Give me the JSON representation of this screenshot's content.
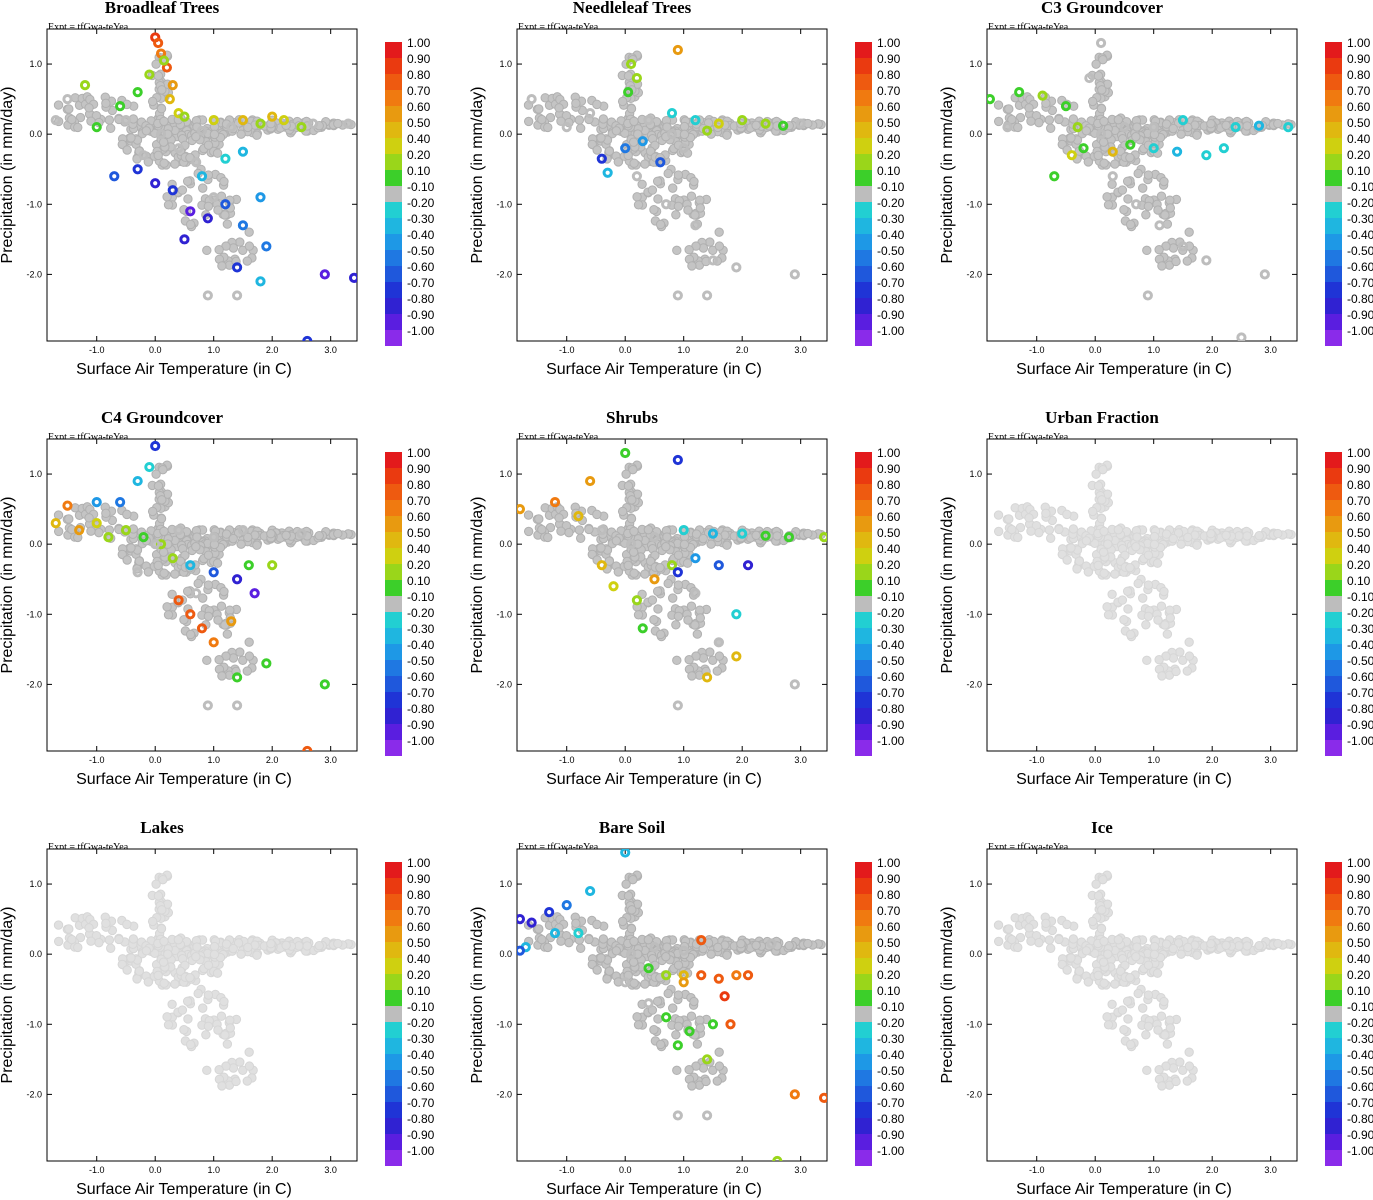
{
  "figure": {
    "expt_label": "Expt = tfGwa-teYea",
    "xlabel": "Surface Air Temperature (in C)",
    "ylabel": "Precipitation (in mm/day)",
    "x_ticks": [
      "-1.0",
      "0.0",
      "1.0",
      "2.0",
      "3.0"
    ],
    "y_ticks": [
      "1.0",
      "0.0",
      "-1.0",
      "-2.0"
    ],
    "colorbar_labels": [
      "1.00",
      "0.90",
      "0.80",
      "0.70",
      "0.60",
      "0.50",
      "0.40",
      "0.20",
      "0.10",
      "-0.10",
      "-0.20",
      "-0.30",
      "-0.40",
      "-0.50",
      "-0.60",
      "-0.70",
      "-0.80",
      "-0.90",
      "-1.00"
    ],
    "colorbar_colors": [
      "#e31a1c",
      "#ea3a10",
      "#ee5a10",
      "#f07a10",
      "#e89a10",
      "#e0b810",
      "#cfd010",
      "#9ad61a",
      "#3ccf2a",
      "#bdbdbd",
      "#22cfd2",
      "#1fb6e0",
      "#1e98e6",
      "#1f78e2",
      "#1f58dc",
      "#1f34d6",
      "#3022d2",
      "#5a1ee0",
      "#8a2bea"
    ]
  },
  "chart_data": [
    {
      "type": "scatter",
      "title": "Broadleaf Trees",
      "xlabel": "Surface Air Temperature (in C)",
      "ylabel": "Precipitation (in mm/day)",
      "xlim": [
        -1.85,
        3.45
      ],
      "ylim": [
        -2.95,
        1.5
      ],
      "color_scale": [
        -1.0,
        1.0
      ],
      "points": [
        [
          0.0,
          1.38,
          0.9
        ],
        [
          0.05,
          1.3,
          0.8
        ],
        [
          0.1,
          1.15,
          0.7
        ],
        [
          0.2,
          0.95,
          0.75
        ],
        [
          0.3,
          0.7,
          0.6
        ],
        [
          0.25,
          0.5,
          0.5
        ],
        [
          0.4,
          0.3,
          0.4
        ],
        [
          0.15,
          1.05,
          0.3
        ],
        [
          -0.1,
          0.85,
          0.2
        ],
        [
          -0.3,
          0.6,
          0.15
        ],
        [
          0.5,
          0.25,
          0.2
        ],
        [
          1.0,
          0.2,
          0.4
        ],
        [
          1.5,
          0.2,
          0.5
        ],
        [
          2.0,
          0.25,
          0.5
        ],
        [
          2.2,
          0.2,
          0.4
        ],
        [
          1.8,
          0.15,
          0.3
        ],
        [
          2.5,
          0.1,
          0.2
        ],
        [
          -1.2,
          0.7,
          0.2
        ],
        [
          -0.6,
          0.4,
          0.15
        ],
        [
          -1.0,
          0.1,
          0.15
        ],
        [
          -0.7,
          -0.6,
          -0.6
        ],
        [
          -0.3,
          -0.5,
          -0.7
        ],
        [
          0.0,
          -0.7,
          -0.8
        ],
        [
          0.3,
          -0.8,
          -0.7
        ],
        [
          0.6,
          -1.1,
          -0.9
        ],
        [
          0.9,
          -1.2,
          -0.8
        ],
        [
          0.5,
          -1.5,
          -0.85
        ],
        [
          1.2,
          -1.0,
          -0.6
        ],
        [
          1.5,
          -1.3,
          -0.5
        ],
        [
          1.9,
          -1.6,
          -0.5
        ],
        [
          1.4,
          -1.9,
          -0.7
        ],
        [
          1.8,
          -2.1,
          -0.3
        ],
        [
          2.9,
          -2.0,
          -0.9
        ],
        [
          3.4,
          -2.05,
          -0.8
        ],
        [
          2.6,
          -2.95,
          -0.7
        ],
        [
          1.5,
          -0.25,
          -0.3
        ],
        [
          1.2,
          -0.35,
          -0.25
        ],
        [
          0.8,
          -0.6,
          -0.3
        ],
        [
          1.8,
          -0.9,
          -0.4
        ],
        [
          0.1,
          0.0,
          0.05
        ],
        [
          0.4,
          -0.2,
          -0.05
        ],
        [
          -0.2,
          -0.3,
          0.05
        ],
        [
          0.8,
          0.05,
          0.0
        ],
        [
          1.3,
          0.1,
          0.0
        ],
        [
          -0.5,
          0.2,
          0.0
        ],
        [
          0.7,
          -0.4,
          0.0
        ],
        [
          1.0,
          -0.9,
          0.0
        ],
        [
          0.9,
          -2.3,
          0.0
        ],
        [
          1.4,
          -2.3,
          0.0
        ],
        [
          -1.5,
          0.5,
          0.0
        ],
        [
          -1.7,
          0.2,
          0.0
        ],
        [
          2.7,
          0.15,
          0.0
        ],
        [
          3.3,
          0.15,
          0.0
        ]
      ]
    },
    {
      "type": "scatter",
      "title": "Needleleaf Trees",
      "xlabel": "Surface Air Temperature (in C)",
      "ylabel": "Precipitation (in mm/day)",
      "xlim": [
        -1.85,
        3.45
      ],
      "ylim": [
        -2.95,
        1.5
      ],
      "color_scale": [
        -1.0,
        1.0
      ],
      "points": [
        [
          0.9,
          1.2,
          0.6
        ],
        [
          0.1,
          1.0,
          0.3
        ],
        [
          0.2,
          0.8,
          0.2
        ],
        [
          0.05,
          0.6,
          0.15
        ],
        [
          0.8,
          0.3,
          -0.2
        ],
        [
          1.2,
          0.2,
          -0.25
        ],
        [
          1.6,
          0.15,
          0.4
        ],
        [
          2.0,
          0.2,
          0.3
        ],
        [
          2.4,
          0.15,
          0.2
        ],
        [
          2.7,
          0.12,
          0.15
        ],
        [
          1.4,
          0.05,
          0.2
        ],
        [
          0.3,
          -0.1,
          -0.4
        ],
        [
          0.0,
          -0.2,
          -0.5
        ],
        [
          -0.4,
          -0.35,
          -0.7
        ],
        [
          -0.3,
          -0.55,
          -0.3
        ],
        [
          0.6,
          -0.4,
          -0.6
        ],
        [
          0.8,
          0.0,
          0.0
        ],
        [
          1.0,
          -0.2,
          0.0
        ],
        [
          0.4,
          0.2,
          0.0
        ],
        [
          -0.6,
          0.3,
          0.0
        ],
        [
          -1.0,
          0.1,
          0.0
        ],
        [
          0.2,
          -0.6,
          0.0
        ],
        [
          0.7,
          -1.0,
          0.0
        ],
        [
          1.2,
          -1.3,
          0.0
        ],
        [
          1.5,
          -1.8,
          0.0
        ],
        [
          1.9,
          -1.9,
          0.0
        ],
        [
          1.4,
          -2.3,
          0.0
        ],
        [
          0.9,
          -2.3,
          0.0
        ],
        [
          2.9,
          -2.0,
          0.0
        ],
        [
          -1.6,
          0.5,
          0.0
        ],
        [
          3.0,
          0.15,
          0.0
        ]
      ]
    },
    {
      "type": "scatter",
      "title": "C3 Groundcover",
      "xlabel": "Surface Air Temperature (in C)",
      "ylabel": "Precipitation (in mm/day)",
      "xlim": [
        -1.85,
        3.45
      ],
      "ylim": [
        -2.95,
        1.5
      ],
      "color_scale": [
        -1.0,
        1.0
      ],
      "points": [
        [
          -1.8,
          0.5,
          0.15
        ],
        [
          -1.3,
          0.6,
          0.15
        ],
        [
          -0.9,
          0.55,
          0.2
        ],
        [
          -0.5,
          0.4,
          0.15
        ],
        [
          -0.3,
          0.1,
          0.2
        ],
        [
          -0.2,
          -0.2,
          0.1
        ],
        [
          -0.4,
          -0.3,
          0.4
        ],
        [
          0.3,
          -0.25,
          0.5
        ],
        [
          -0.7,
          -0.6,
          0.15
        ],
        [
          0.6,
          -0.15,
          0.15
        ],
        [
          1.0,
          -0.2,
          -0.2
        ],
        [
          1.4,
          -0.25,
          -0.3
        ],
        [
          1.9,
          -0.3,
          -0.2
        ],
        [
          2.2,
          -0.2,
          -0.25
        ],
        [
          2.4,
          0.1,
          -0.2
        ],
        [
          2.8,
          0.12,
          -0.3
        ],
        [
          3.3,
          0.1,
          -0.25
        ],
        [
          1.5,
          0.2,
          -0.2
        ],
        [
          0.1,
          0.0,
          0.0
        ],
        [
          0.5,
          0.1,
          0.0
        ],
        [
          1.0,
          0.1,
          0.0
        ],
        [
          0.3,
          -0.6,
          0.0
        ],
        [
          0.7,
          -1.0,
          0.0
        ],
        [
          1.1,
          -1.3,
          0.0
        ],
        [
          1.5,
          -1.6,
          0.0
        ],
        [
          1.9,
          -1.8,
          0.0
        ],
        [
          0.9,
          -2.3,
          0.0
        ],
        [
          2.9,
          -2.0,
          0.0
        ],
        [
          0.1,
          1.3,
          0.0
        ],
        [
          -0.1,
          0.8,
          0.0
        ],
        [
          -1.5,
          0.1,
          0.0
        ],
        [
          2.5,
          -2.9,
          0.0
        ]
      ]
    },
    {
      "type": "scatter",
      "title": "C4 Groundcover",
      "xlabel": "Surface Air Temperature (in C)",
      "ylabel": "Precipitation (in mm/day)",
      "xlim": [
        -1.85,
        3.45
      ],
      "ylim": [
        -2.95,
        1.5
      ],
      "color_scale": [
        -1.0,
        1.0
      ],
      "points": [
        [
          0.0,
          1.4,
          -0.7
        ],
        [
          -0.1,
          1.1,
          -0.2
        ],
        [
          -0.3,
          0.9,
          -0.3
        ],
        [
          -0.6,
          0.6,
          -0.5
        ],
        [
          -1.0,
          0.6,
          -0.4
        ],
        [
          -1.5,
          0.55,
          0.7
        ],
        [
          -1.7,
          0.3,
          0.5
        ],
        [
          -1.3,
          0.2,
          0.6
        ],
        [
          -1.0,
          0.3,
          0.4
        ],
        [
          -0.8,
          0.1,
          0.3
        ],
        [
          -0.5,
          0.2,
          0.2
        ],
        [
          -0.2,
          0.1,
          0.15
        ],
        [
          0.1,
          0.0,
          0.2
        ],
        [
          0.3,
          -0.2,
          0.2
        ],
        [
          0.6,
          -0.3,
          -0.3
        ],
        [
          1.0,
          -0.4,
          -0.6
        ],
        [
          1.4,
          -0.5,
          -0.8
        ],
        [
          1.7,
          -0.7,
          -0.9
        ],
        [
          2.0,
          -0.3,
          0.2
        ],
        [
          1.6,
          -0.3,
          0.15
        ],
        [
          0.4,
          -0.8,
          0.75
        ],
        [
          0.6,
          -1.0,
          0.8
        ],
        [
          0.8,
          -1.2,
          0.75
        ],
        [
          1.0,
          -1.4,
          0.7
        ],
        [
          1.3,
          -1.1,
          0.6
        ],
        [
          1.9,
          -1.7,
          0.15
        ],
        [
          1.4,
          -1.9,
          0.15
        ],
        [
          2.9,
          -2.0,
          0.15
        ],
        [
          2.6,
          -2.95,
          0.8
        ],
        [
          0.0,
          0.0,
          0.0
        ],
        [
          0.4,
          0.2,
          0.0
        ],
        [
          1.0,
          0.1,
          0.0
        ],
        [
          -0.3,
          -0.4,
          0.0
        ],
        [
          0.7,
          -0.7,
          0.0
        ],
        [
          1.5,
          0.2,
          0.0
        ],
        [
          2.5,
          0.15,
          0.0
        ],
        [
          0.9,
          -2.3,
          0.0
        ],
        [
          1.4,
          -2.3,
          0.0
        ]
      ]
    },
    {
      "type": "scatter",
      "title": "Shrubs",
      "xlabel": "Surface Air Temperature (in C)",
      "ylabel": "Precipitation (in mm/day)",
      "xlim": [
        -1.85,
        3.45
      ],
      "ylim": [
        -2.95,
        1.5
      ],
      "color_scale": [
        -1.0,
        1.0
      ],
      "points": [
        [
          0.9,
          1.2,
          -0.7
        ],
        [
          0.0,
          1.3,
          0.1
        ],
        [
          -0.6,
          0.9,
          0.6
        ],
        [
          -1.2,
          0.6,
          0.7
        ],
        [
          -1.8,
          0.5,
          0.6
        ],
        [
          -0.8,
          0.4,
          0.5
        ],
        [
          -0.4,
          -0.3,
          0.5
        ],
        [
          -0.2,
          -0.6,
          0.4
        ],
        [
          0.2,
          -0.8,
          0.3
        ],
        [
          0.5,
          -0.5,
          0.6
        ],
        [
          0.8,
          -0.3,
          0.2
        ],
        [
          1.0,
          0.2,
          -0.2
        ],
        [
          1.5,
          0.15,
          -0.3
        ],
        [
          2.0,
          0.15,
          -0.25
        ],
        [
          2.4,
          0.12,
          0.15
        ],
        [
          2.8,
          0.1,
          0.15
        ],
        [
          3.4,
          0.1,
          0.2
        ],
        [
          1.2,
          -0.2,
          -0.4
        ],
        [
          1.6,
          -0.3,
          -0.6
        ],
        [
          2.1,
          -0.3,
          -0.8
        ],
        [
          0.9,
          -0.4,
          -0.7
        ],
        [
          0.3,
          -1.2,
          0.15
        ],
        [
          1.9,
          -1.0,
          -0.25
        ],
        [
          1.9,
          -1.6,
          0.5
        ],
        [
          1.4,
          -1.9,
          0.5
        ],
        [
          0.1,
          0.0,
          0.0
        ],
        [
          0.5,
          0.1,
          0.0
        ],
        [
          -0.4,
          0.2,
          0.0
        ],
        [
          1.2,
          -0.7,
          0.0
        ],
        [
          1.6,
          -1.4,
          0.0
        ],
        [
          0.9,
          -2.3,
          0.0
        ],
        [
          2.9,
          -2.0,
          0.0
        ]
      ]
    },
    {
      "type": "scatter",
      "title": "Urban Fraction",
      "xlabel": "Surface Air Temperature (in C)",
      "ylabel": "Precipitation (in mm/day)",
      "xlim": [
        -1.85,
        3.45
      ],
      "ylim": [
        -2.95,
        1.5
      ],
      "color_scale": [
        -1.0,
        1.0
      ],
      "note": "all points in no-data light grey",
      "points": []
    },
    {
      "type": "scatter",
      "title": "Lakes",
      "xlabel": "Surface Air Temperature (in C)",
      "ylabel": "Precipitation (in mm/day)",
      "xlim": [
        -1.85,
        3.45
      ],
      "ylim": [
        -2.95,
        1.5
      ],
      "color_scale": [
        -1.0,
        1.0
      ],
      "note": "all points in no-data light grey",
      "points": []
    },
    {
      "type": "scatter",
      "title": "Bare Soil",
      "xlabel": "Surface Air Temperature (in C)",
      "ylabel": "Precipitation (in mm/day)",
      "xlim": [
        -1.85,
        3.45
      ],
      "ylim": [
        -2.95,
        1.5
      ],
      "color_scale": [
        -1.0,
        1.0
      ],
      "points": [
        [
          0.0,
          1.45,
          -0.3
        ],
        [
          -0.6,
          0.9,
          -0.3
        ],
        [
          -1.0,
          0.7,
          -0.5
        ],
        [
          -1.3,
          0.6,
          -0.7
        ],
        [
          -1.6,
          0.45,
          -0.85
        ],
        [
          -1.8,
          0.5,
          -0.8
        ],
        [
          -1.2,
          0.3,
          -0.3
        ],
        [
          -1.7,
          0.1,
          -0.3
        ],
        [
          -1.8,
          0.05,
          -0.6
        ],
        [
          -0.8,
          0.3,
          -0.2
        ],
        [
          1.3,
          0.2,
          0.75
        ],
        [
          0.4,
          -0.2,
          0.15
        ],
        [
          0.7,
          -0.3,
          0.3
        ],
        [
          1.0,
          -0.3,
          0.5
        ],
        [
          1.3,
          -0.3,
          0.8
        ],
        [
          1.6,
          -0.35,
          0.75
        ],
        [
          1.9,
          -0.3,
          0.7
        ],
        [
          2.1,
          -0.3,
          0.8
        ],
        [
          1.7,
          -0.6,
          0.9
        ],
        [
          1.8,
          -1.0,
          0.85
        ],
        [
          1.0,
          -0.4,
          0.6
        ],
        [
          0.7,
          -0.9,
          0.15
        ],
        [
          1.1,
          -1.1,
          0.15
        ],
        [
          1.5,
          -1.0,
          0.15
        ],
        [
          0.9,
          -1.3,
          0.15
        ],
        [
          1.4,
          -1.5,
          0.2
        ],
        [
          2.9,
          -2.0,
          0.7
        ],
        [
          3.4,
          -2.05,
          0.8
        ],
        [
          2.6,
          -2.95,
          0.2
        ],
        [
          0.1,
          0.0,
          0.0
        ],
        [
          0.5,
          0.1,
          0.0
        ],
        [
          1.0,
          0.05,
          0.0
        ],
        [
          0.0,
          -0.4,
          0.0
        ],
        [
          0.4,
          -0.7,
          0.0
        ],
        [
          0.9,
          -2.3,
          0.0
        ],
        [
          1.4,
          -2.3,
          0.0
        ],
        [
          2.5,
          0.15,
          0.0
        ]
      ]
    },
    {
      "type": "scatter",
      "title": "Ice",
      "xlabel": "Surface Air Temperature (in C)",
      "ylabel": "Precipitation (in mm/day)",
      "xlim": [
        -1.85,
        3.45
      ],
      "ylim": [
        -2.95,
        1.5
      ],
      "color_scale": [
        -1.0,
        1.0
      ],
      "note": "all points in no-data light grey",
      "points": []
    }
  ]
}
